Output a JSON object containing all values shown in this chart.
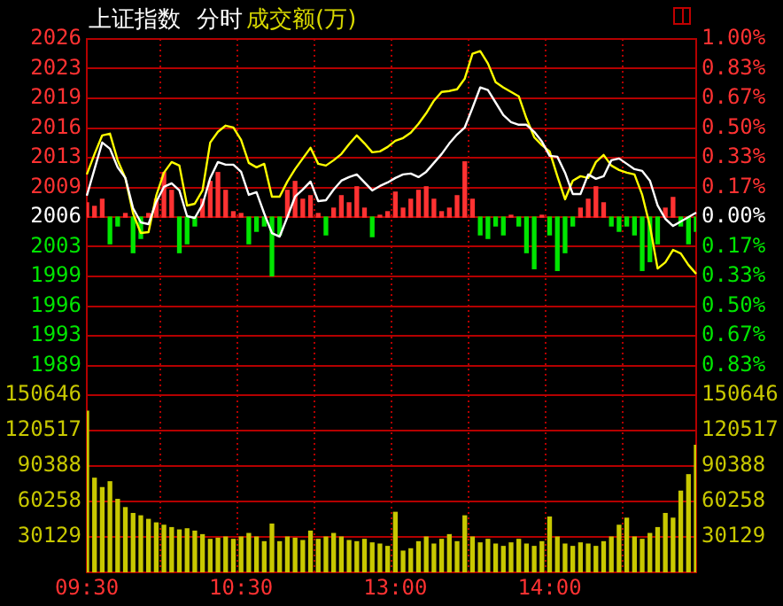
{
  "chart_data": [
    {
      "type": "line",
      "title": "上证指数",
      "subtitle": "分时",
      "annotations": [
        "成交额(万)"
      ],
      "categories": [
        null,
        null,
        null,
        null,
        null,
        null,
        null,
        null,
        null,
        null,
        null,
        null,
        null,
        null,
        null,
        null,
        null,
        null,
        null,
        null,
        null,
        null,
        null,
        null,
        null,
        null,
        null,
        null,
        null,
        null,
        null,
        null,
        null,
        null,
        null,
        null,
        null,
        null,
        null,
        null,
        null,
        null,
        null,
        null,
        null,
        null,
        null,
        null,
        null,
        null,
        null,
        null,
        null,
        null,
        null,
        null,
        null,
        null,
        null,
        null,
        null,
        null,
        null,
        null,
        null,
        null,
        null,
        null,
        null,
        null,
        null,
        null,
        null,
        null,
        null,
        null,
        null,
        null,
        null,
        null
      ],
      "ylim": [
        1985.94,
        2026.06
      ],
      "yticks": [
        {
          "value": 1989.28,
          "label": "1989"
        },
        {
          "value": 1992.63,
          "label": "1993"
        },
        {
          "value": 1995.97,
          "label": "1996"
        },
        {
          "value": 1999.31,
          "label": "1999"
        },
        {
          "value": 2002.66,
          "label": "2003"
        },
        {
          "value": 2006,
          "label": "2006"
        },
        {
          "value": 2009.34,
          "label": "2009"
        },
        {
          "value": 2012.69,
          "label": "2013"
        },
        {
          "value": 2016.03,
          "label": "2016"
        },
        {
          "value": 2019.37,
          "label": "2019"
        },
        {
          "value": 2022.72,
          "label": "2023"
        },
        {
          "value": 2026.06,
          "label": "2026"
        }
      ],
      "y2lim": [
        -1,
        1
      ],
      "y2ticks": [
        {
          "value": -0.833,
          "label": "0.83%"
        },
        {
          "value": -0.667,
          "label": "0.67%"
        },
        {
          "value": -0.5,
          "label": "0.50%"
        },
        {
          "value": -0.333,
          "label": "0.33%"
        },
        {
          "value": -0.167,
          "label": "0.17%"
        },
        {
          "value": 0,
          "label": "0.00%"
        },
        {
          "value": 0.167,
          "label": "0.17%"
        },
        {
          "value": 0.333,
          "label": "0.33%"
        },
        {
          "value": 0.5,
          "label": "0.50%"
        },
        {
          "value": 0.667,
          "label": "0.67%"
        },
        {
          "value": 0.833,
          "label": "0.83%"
        },
        {
          "value": 1,
          "label": "1.00%"
        }
      ],
      "grid": true,
      "tick_labels": "y",
      "series": [
        {
          "color": "#ffffff",
          "values": [
            2008.4,
            2011.4,
            2014.4,
            2013.7,
            2011.6,
            2010.4,
            2007.0,
            2005.4,
            2005.2,
            2007.7,
            2009.4,
            2009.8,
            2009.0,
            2006.1,
            2005.9,
            2007.4,
            2010.4,
            2012.2,
            2011.9,
            2011.9,
            2011.1,
            2008.5,
            2008.8,
            2006.4,
            2004.2,
            2003.8,
            2006.0,
            2008.3,
            2009.1,
            2010.0,
            2007.8,
            2007.9,
            2009.1,
            2010.1,
            2010.5,
            2010.8,
            2009.9,
            2009.0,
            2009.5,
            2009.9,
            2010.4,
            2010.8,
            2010.9,
            2010.5,
            2011.1,
            2012.1,
            2013.1,
            2014.3,
            2015.3,
            2016.1,
            2018.3,
            2020.6,
            2020.3,
            2018.9,
            2017.5,
            2016.7,
            2016.4,
            2016.4,
            2015.6,
            2014.5,
            2012.9,
            2012.8,
            2011.0,
            2008.6,
            2008.6,
            2010.8,
            2010.3,
            2010.6,
            2012.4,
            2012.6,
            2012.0,
            2011.4,
            2011.2,
            2010.1,
            2007.3,
            2005.8,
            2005.0,
            2005.5,
            2006.0,
            2006.5
          ]
        },
        {
          "color": "#ffff00",
          "values": [
            2010.8,
            2013.1,
            2015.2,
            2015.4,
            2012.4,
            2010.4,
            2006.4,
            2004.2,
            2004.3,
            2008.4,
            2011.0,
            2012.2,
            2011.8,
            2007.3,
            2007.5,
            2009.0,
            2014.4,
            2015.6,
            2016.3,
            2016.1,
            2014.7,
            2012.1,
            2011.6,
            2012.0,
            2008.3,
            2008.3,
            2010.0,
            2011.4,
            2012.6,
            2013.8,
            2012.0,
            2011.8,
            2012.4,
            2013.1,
            2014.2,
            2015.2,
            2014.3,
            2013.3,
            2013.4,
            2013.9,
            2014.6,
            2014.9,
            2015.5,
            2016.5,
            2017.7,
            2019.1,
            2020.1,
            2020.2,
            2020.4,
            2021.6,
            2024.4,
            2024.7,
            2023.3,
            2021.2,
            2020.6,
            2020.1,
            2019.6,
            2017.1,
            2015.0,
            2014.1,
            2013.4,
            2010.6,
            2008.0,
            2010.1,
            2010.6,
            2010.4,
            2012.2,
            2013.0,
            2011.8,
            2011.3,
            2011.0,
            2010.8,
            2008.5,
            2005.0,
            2000.2,
            2000.9,
            2002.3,
            2001.9,
            2000.6,
            1999.6
          ]
        },
        {
          "type": "bar",
          "axis": "y2",
          "color": "#ff3232",
          "values": [
            0.08,
            0.06,
            0.1,
            null,
            null,
            0.02,
            null,
            null,
            0.02,
            0.1,
            0.25,
            0.15,
            null,
            null,
            null,
            0.1,
            0.2,
            0.25,
            0.15,
            0.03,
            0.02,
            null,
            null,
            null,
            null,
            null,
            0.15,
            0.2,
            0.1,
            0.12,
            0.02,
            null,
            0.05,
            0.12,
            0.08,
            0.17,
            0.05,
            null,
            0.01,
            0.03,
            0.14,
            0.05,
            0.1,
            0.15,
            0.17,
            0.1,
            0.03,
            0.05,
            0.12,
            0.31,
            0.1,
            null,
            null,
            null,
            null,
            0.01,
            null,
            null,
            null,
            0.01,
            null,
            null,
            null,
            null,
            0.05,
            0.1,
            0.17,
            0.08,
            null,
            null,
            null,
            null,
            null,
            null,
            null,
            0.05,
            0.11,
            null,
            null,
            null
          ]
        },
        {
          "type": "bar",
          "axis": "y2",
          "color": "#00e600",
          "values": [
            null,
            null,
            null,
            -0.15,
            -0.05,
            null,
            -0.2,
            -0.12,
            null,
            null,
            null,
            null,
            -0.2,
            -0.15,
            -0.05,
            null,
            null,
            null,
            null,
            null,
            null,
            -0.15,
            -0.08,
            -0.05,
            -0.33,
            -0.1,
            null,
            null,
            null,
            null,
            null,
            -0.1,
            null,
            null,
            null,
            null,
            null,
            -0.11,
            null,
            null,
            null,
            null,
            null,
            null,
            null,
            null,
            null,
            null,
            null,
            null,
            null,
            -0.1,
            -0.12,
            -0.05,
            -0.1,
            null,
            -0.05,
            -0.2,
            -0.29,
            null,
            -0.1,
            -0.3,
            -0.2,
            -0.05,
            null,
            null,
            null,
            null,
            -0.05,
            -0.08,
            -0.05,
            -0.1,
            -0.3,
            -0.25,
            -0.15,
            null,
            null,
            -0.05,
            -0.15,
            -0.08
          ]
        }
      ]
    },
    {
      "type": "bar",
      "color": "#c8c800",
      "categories": [
        "09:30",
        null,
        null,
        null,
        null,
        null,
        null,
        null,
        null,
        null,
        null,
        null,
        null,
        null,
        null,
        null,
        null,
        null,
        null,
        null,
        "10:30",
        null,
        null,
        null,
        null,
        null,
        null,
        null,
        null,
        null,
        null,
        null,
        null,
        null,
        null,
        null,
        null,
        null,
        null,
        null,
        "13:00",
        null,
        null,
        null,
        null,
        null,
        null,
        null,
        null,
        null,
        null,
        null,
        null,
        null,
        null,
        null,
        null,
        null,
        null,
        null,
        "14:00",
        null,
        null,
        null,
        null,
        null,
        null,
        null,
        null,
        null,
        null,
        null,
        null,
        null,
        null,
        null,
        null,
        null,
        null,
        null
      ],
      "values": [
        137000,
        80000,
        72000,
        77000,
        62000,
        55000,
        50000,
        48000,
        45000,
        42000,
        40000,
        38000,
        36000,
        37000,
        35000,
        32000,
        28000,
        29000,
        30000,
        28000,
        30000,
        33000,
        30000,
        26000,
        41000,
        26000,
        30000,
        29000,
        27000,
        35000,
        28000,
        30000,
        33000,
        30000,
        27000,
        26000,
        28000,
        25000,
        24000,
        22000,
        51000,
        18000,
        20000,
        26000,
        30000,
        24000,
        28000,
        32000,
        26000,
        48000,
        30000,
        25000,
        28000,
        24000,
        22000,
        25000,
        28000,
        24000,
        22000,
        26000,
        47000,
        30000,
        24000,
        22000,
        25000,
        24000,
        22000,
        26000,
        30000,
        40000,
        46000,
        30000,
        28000,
        33000,
        38000,
        50000,
        46000,
        69000,
        83000,
        108000
      ],
      "ylim": [
        0,
        150646
      ],
      "yticks": [
        30129,
        60258,
        90388,
        120517,
        150646
      ],
      "y2lim": [
        0,
        150646
      ],
      "y2ticks": [
        30129,
        60258,
        90388,
        120517,
        150646
      ],
      "grid": true
    }
  ]
}
